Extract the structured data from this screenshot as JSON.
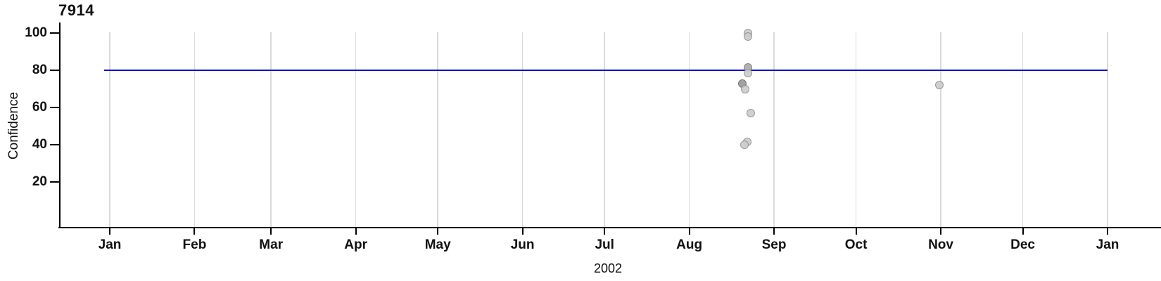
{
  "chart": {
    "title": "7914",
    "y_axis_label": "Confidence",
    "x_axis_year": "2002"
  },
  "colors": {
    "axis": "#000000",
    "grid": "#dadada",
    "text": "#111111",
    "reference_line": "#1111c4"
  },
  "chart_data": {
    "type": "scatter",
    "title": "7914",
    "xlabel": "2002",
    "ylabel": "Confidence",
    "x_axis": {
      "unit": "time (months, Jan 2002 - Jan 2003)",
      "tick_labels": [
        "Jan",
        "Feb",
        "Mar",
        "Apr",
        "May",
        "Jun",
        "Jul",
        "Aug",
        "Sep",
        "Oct",
        "Nov",
        "Dec",
        "Jan"
      ],
      "tick_day_offsets": [
        0,
        31,
        59,
        90,
        120,
        151,
        181,
        212,
        243,
        273,
        304,
        334,
        365
      ],
      "domain_days": [
        0,
        365
      ]
    },
    "y_axis": {
      "label": "Confidence",
      "ticks": [
        20,
        40,
        60,
        80,
        100
      ],
      "range": [
        0,
        106
      ]
    },
    "grid": {
      "vertical": true,
      "horizontal": false,
      "color": "#dadada"
    },
    "reference_line": {
      "y": 80,
      "color": "#1111c4"
    },
    "point_style": {
      "radius": 6,
      "opacity": 0.9,
      "shades": {
        "light": {
          "fill": "#cccccc",
          "stroke": "#8f8f8f"
        },
        "medium": {
          "fill": "#aaaaaa",
          "stroke": "#7a7a7a"
        },
        "dark": {
          "fill": "#999999",
          "stroke": "#696969"
        }
      }
    },
    "points": [
      {
        "date": "2002-08-22",
        "day_offset": 233.4,
        "confidence": 100,
        "shade": "light"
      },
      {
        "date": "2002-08-22",
        "day_offset": 233.4,
        "confidence": 98,
        "shade": "light"
      },
      {
        "date": "2002-08-22",
        "day_offset": 233.4,
        "confidence": 81.5,
        "shade": "medium"
      },
      {
        "date": "2002-08-22",
        "day_offset": 233.4,
        "confidence": 78.5,
        "shade": "light"
      },
      {
        "date": "2002-08-20",
        "day_offset": 231.5,
        "confidence": 73,
        "shade": "dark"
      },
      {
        "date": "2002-08-21",
        "day_offset": 232.4,
        "confidence": 70,
        "shade": "light"
      },
      {
        "date": "2002-08-23",
        "day_offset": 234.4,
        "confidence": 57,
        "shade": "light"
      },
      {
        "date": "2002-08-22",
        "day_offset": 233.2,
        "confidence": 41.5,
        "shade": "light"
      },
      {
        "date": "2002-08-21",
        "day_offset": 232.3,
        "confidence": 40,
        "shade": "light"
      },
      {
        "date": "2002-10-31",
        "day_offset": 303.5,
        "confidence": 72,
        "shade": "light"
      }
    ]
  }
}
